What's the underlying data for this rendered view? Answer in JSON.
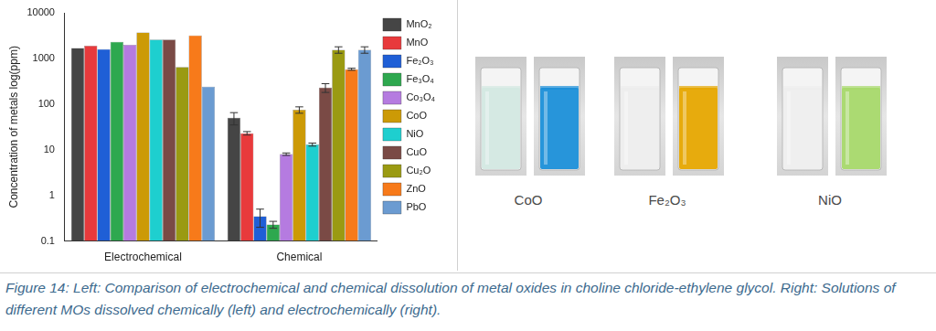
{
  "chart_data": {
    "type": "bar",
    "y_label": "Concentration of metals log(ppm)",
    "categories": [
      "Electrochemical",
      "Chemical"
    ],
    "log": "y",
    "grid": false,
    "legend": "right",
    "ylim": [
      0.1,
      10000
    ],
    "yticks": [
      0.1,
      1,
      10,
      100,
      1000,
      10000
    ],
    "series": [
      {
        "name": "MnO₂",
        "color": "#454545",
        "values": [
          1700,
          50
        ],
        "errors": [
          null,
          15
        ]
      },
      {
        "name": "MnO",
        "color": "#e83a3c",
        "values": [
          1900,
          23
        ],
        "errors": [
          null,
          2
        ]
      },
      {
        "name": "Fe₂O₃",
        "color": "#1f5fd6",
        "values": [
          1600,
          0.35
        ],
        "errors": [
          null,
          0.15
        ]
      },
      {
        "name": "Fe₃O₄",
        "color": "#2ea84f",
        "values": [
          2300,
          0.23
        ],
        "errors": [
          null,
          0.04
        ]
      },
      {
        "name": "Co₃O₄",
        "color": "#b57be0",
        "values": [
          2000,
          8
        ],
        "errors": [
          null,
          0.5
        ]
      },
      {
        "name": "CoO",
        "color": "#cc9a06",
        "values": [
          3700,
          75
        ],
        "errors": [
          null,
          12
        ]
      },
      {
        "name": "NiO",
        "color": "#1ecfcf",
        "values": [
          2600,
          13
        ],
        "errors": [
          null,
          1
        ]
      },
      {
        "name": "CuO",
        "color": "#7a4a45",
        "values": [
          2600,
          230
        ],
        "errors": [
          null,
          50
        ]
      },
      {
        "name": "Cu₂O",
        "color": "#9a9a12",
        "values": [
          650,
          1550
        ],
        "errors": [
          null,
          250
        ]
      },
      {
        "name": "ZnO",
        "color": "#f77a1a",
        "values": [
          3200,
          580
        ],
        "errors": [
          null,
          30
        ]
      },
      {
        "name": "PbO",
        "color": "#6b9bd1",
        "values": [
          240,
          1550
        ],
        "errors": [
          null,
          250
        ]
      }
    ]
  },
  "photos": [
    {
      "label": "CoO",
      "colors": [
        "#d3e8e1",
        "#1b8fd8"
      ]
    },
    {
      "label": "Fe₂O₃",
      "colors": [
        "#ededed",
        "#e6a600"
      ]
    },
    {
      "label": "NiO",
      "colors": [
        "#eeeeee",
        "#a6d86a"
      ]
    }
  ],
  "caption": "Figure 14: Left: Comparison of electrochemical and chemical dissolution of metal oxides in choline chloride-ethylene glycol. Right: Solutions of different MOs dissolved chemically (left) and electrochemically (right)."
}
